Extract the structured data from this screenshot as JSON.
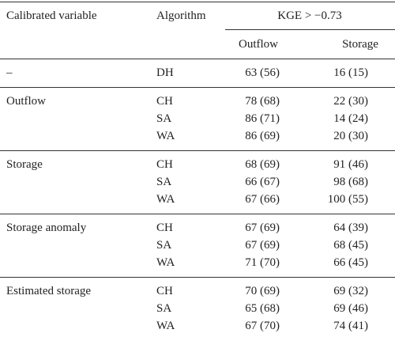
{
  "header": {
    "variable": "Calibrated variable",
    "algorithm": "Algorithm",
    "metric": "KGE > −0.73",
    "columns": [
      "Outflow",
      "Storage"
    ]
  },
  "groups": [
    {
      "variable": "–",
      "rows": [
        [
          "DH",
          "63 (56)",
          "16 (15)"
        ]
      ]
    },
    {
      "variable": "Outflow",
      "rows": [
        [
          "CH",
          "78 (68)",
          "22 (30)"
        ],
        [
          "SA",
          "86 (71)",
          "14 (24)"
        ],
        [
          "WA",
          "86 (69)",
          "20 (30)"
        ]
      ]
    },
    {
      "variable": "Storage",
      "rows": [
        [
          "CH",
          "68 (69)",
          "91 (46)"
        ],
        [
          "SA",
          "66 (67)",
          "98 (68)"
        ],
        [
          "WA",
          "67 (66)",
          "100 (55)"
        ]
      ]
    },
    {
      "variable": "Storage anomaly",
      "rows": [
        [
          "CH",
          "67 (69)",
          "64 (39)"
        ],
        [
          "SA",
          "67 (69)",
          "68 (45)"
        ],
        [
          "WA",
          "71 (70)",
          "66 (45)"
        ]
      ]
    },
    {
      "variable": "Estimated storage",
      "rows": [
        [
          "CH",
          "70 (69)",
          "69 (32)"
        ],
        [
          "SA",
          "65 (68)",
          "69 (46)"
        ],
        [
          "WA",
          "67 (70)",
          "74 (41)"
        ]
      ]
    }
  ]
}
